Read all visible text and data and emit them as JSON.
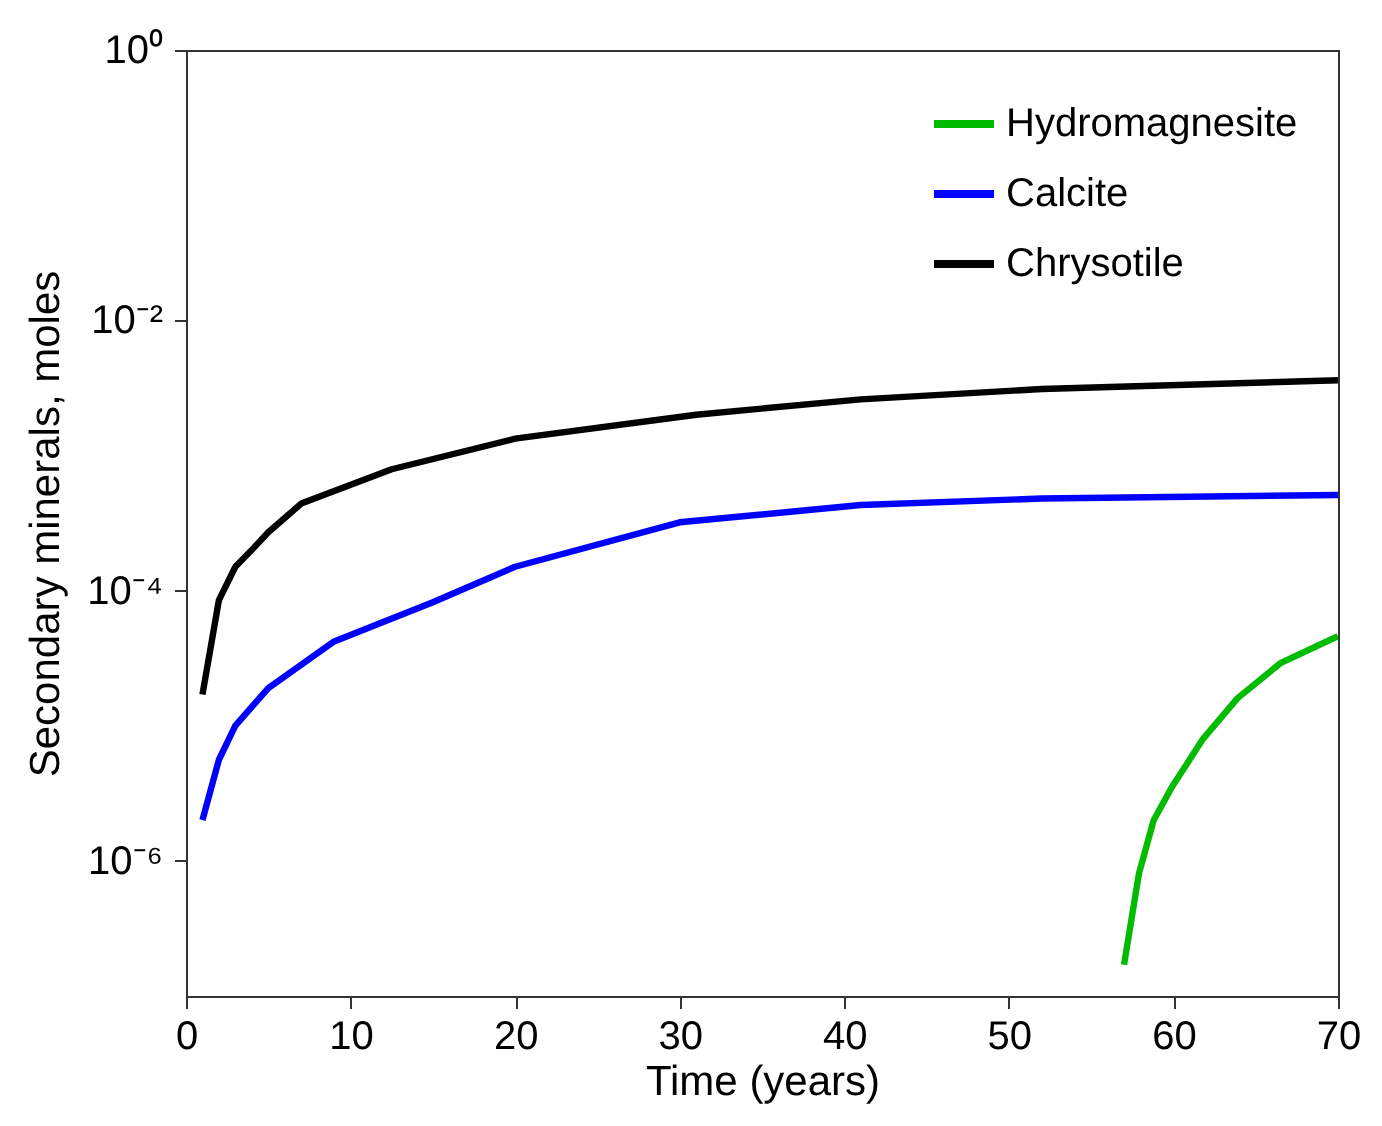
{
  "chart_data": {
    "type": "line",
    "xlabel": "Time (years)",
    "ylabel": "Secondary minerals, moles",
    "log": "y",
    "grid": false,
    "legend": "top right",
    "xlim": [
      0,
      70
    ],
    "xticks": [
      0,
      10,
      20,
      30,
      40,
      50,
      60,
      70
    ],
    "ylim": [
      1e-07,
      1
    ],
    "yticks": [
      {
        "value": 1,
        "label": "10⁰"
      },
      {
        "value": 0.01,
        "label": "10⁻²"
      },
      {
        "value": 0.0001,
        "label": "10⁻⁴"
      },
      {
        "value": 1e-06,
        "label": "10⁻⁶"
      }
    ],
    "series": [
      {
        "name": "Hydromagnesite",
        "color": "#00bb00",
        "x": [
          57,
          57.9,
          58.8,
          59.9,
          61.8,
          63.9,
          66.5,
          70
        ],
        "values": [
          1.7e-07,
          8e-07,
          2e-06,
          3.5e-06,
          8e-06,
          1.6e-05,
          2.9e-05,
          4.6e-05
        ]
      },
      {
        "name": "Calcite",
        "color": "#0000ff",
        "x": [
          1,
          2,
          3,
          5,
          9,
          15,
          20,
          30,
          41,
          52,
          70
        ],
        "values": [
          2e-06,
          5.6e-06,
          1e-05,
          1.9e-05,
          4.2e-05,
          8.2e-05,
          0.00015,
          0.00032,
          0.00043,
          0.00048,
          0.00051
        ]
      },
      {
        "name": "Chrysotile",
        "color": "#000000",
        "x": [
          1,
          2,
          3,
          4,
          5,
          7,
          12.5,
          20,
          31,
          41,
          52,
          70
        ],
        "values": [
          1.7e-05,
          8.5e-05,
          0.00015,
          0.0002,
          0.00027,
          0.00044,
          0.00079,
          0.00133,
          0.002,
          0.0026,
          0.0031,
          0.0036
        ]
      }
    ]
  }
}
